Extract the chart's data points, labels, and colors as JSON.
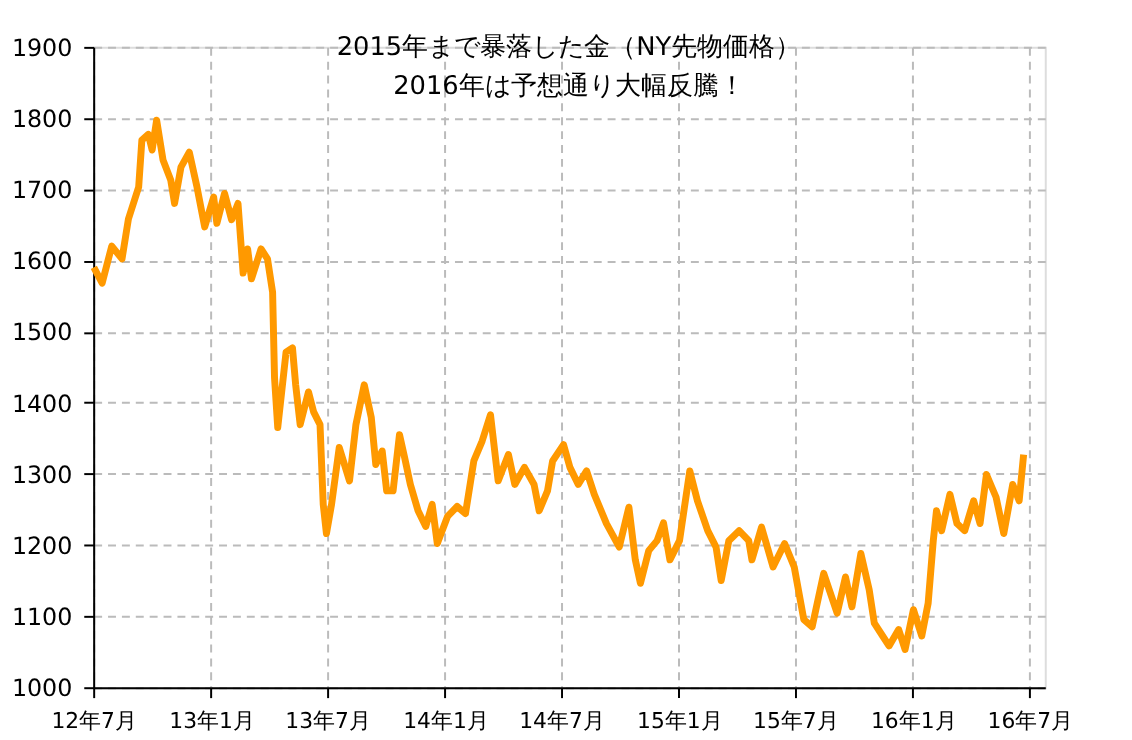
{
  "chart_data": {
    "type": "line",
    "title": "2015年まで暴落した金（NY先物価格）\n2016年は予想通り大幅反騰！",
    "x": [
      "2012-07-02",
      "2012-07-15",
      "2012-07-30",
      "2012-08-15",
      "2012-08-25",
      "2012-09-10",
      "2012-09-15",
      "2012-09-25",
      "2012-10-01",
      "2012-10-08",
      "2012-10-18",
      "2012-10-30",
      "2012-11-05",
      "2012-11-15",
      "2012-11-28",
      "2012-12-10",
      "2012-12-22",
      "2013-01-05",
      "2013-01-10",
      "2013-01-22",
      "2013-02-02",
      "2013-02-12",
      "2013-02-20",
      "2013-02-27",
      "2013-03-05",
      "2013-03-20",
      "2013-03-30",
      "2013-04-07",
      "2013-04-10",
      "2013-04-15",
      "2013-04-28",
      "2013-05-08",
      "2013-05-13",
      "2013-05-20",
      "2013-06-02",
      "2013-06-10",
      "2013-06-20",
      "2013-06-25",
      "2013-06-30",
      "2013-07-08",
      "2013-07-20",
      "2013-08-05",
      "2013-08-15",
      "2013-08-28",
      "2013-09-08",
      "2013-09-15",
      "2013-09-25",
      "2013-10-02",
      "2013-10-12",
      "2013-10-22",
      "2013-10-30",
      "2013-11-08",
      "2013-11-20",
      "2013-12-02",
      "2013-12-12",
      "2013-12-20",
      "2014-01-05",
      "2014-01-20",
      "2014-02-02",
      "2014-02-15",
      "2014-02-28",
      "2014-03-13",
      "2014-03-25",
      "2014-04-10",
      "2014-04-20",
      "2014-05-05",
      "2014-05-20",
      "2014-05-28",
      "2014-06-10",
      "2014-06-18",
      "2014-07-05",
      "2014-07-15",
      "2014-07-28",
      "2014-08-10",
      "2014-08-22",
      "2014-09-10",
      "2014-09-30",
      "2014-10-15",
      "2014-10-25",
      "2014-11-02",
      "2014-11-15",
      "2014-11-28",
      "2014-12-08",
      "2014-12-18",
      "2015-01-02",
      "2015-01-18",
      "2015-01-30",
      "2015-02-15",
      "2015-02-28",
      "2015-03-08",
      "2015-03-20",
      "2015-04-05",
      "2015-04-20",
      "2015-04-25",
      "2015-05-10",
      "2015-05-28",
      "2015-06-15",
      "2015-06-30",
      "2015-07-15",
      "2015-07-28",
      "2015-08-15",
      "2015-09-05",
      "2015-09-18",
      "2015-09-28",
      "2015-10-12",
      "2015-10-25",
      "2015-11-02",
      "2015-11-15",
      "2015-11-25",
      "2015-12-10",
      "2015-12-20",
      "2016-01-02",
      "2016-01-15",
      "2016-01-25",
      "2016-02-02",
      "2016-02-07",
      "2016-02-15",
      "2016-02-28",
      "2016-03-10",
      "2016-03-22",
      "2016-04-05",
      "2016-04-15",
      "2016-04-25",
      "2016-05-10",
      "2016-05-22",
      "2016-06-05",
      "2016-06-15",
      "2016-06-22"
    ],
    "series": [
      {
        "color": "#ff9900",
        "values": [
          1590,
          1568,
          1620,
          1602,
          1658,
          1703,
          1769,
          1777,
          1755,
          1797,
          1741,
          1713,
          1680,
          1731,
          1752,
          1703,
          1647,
          1689,
          1652,
          1694,
          1657,
          1680,
          1582,
          1616,
          1574,
          1616,
          1602,
          1555,
          1435,
          1365,
          1471,
          1477,
          1425,
          1369,
          1415,
          1387,
          1369,
          1257,
          1216,
          1257,
          1337,
          1290,
          1369,
          1425,
          1379,
          1313,
          1332,
          1276,
          1276,
          1355,
          1323,
          1285,
          1248,
          1226,
          1257,
          1202,
          1240,
          1254,
          1244,
          1318,
          1346,
          1383,
          1290,
          1327,
          1285,
          1309,
          1285,
          1248,
          1276,
          1318,
          1341,
          1309,
          1285,
          1304,
          1271,
          1230,
          1197,
          1253,
          1179,
          1146,
          1192,
          1206,
          1231,
          1179,
          1206,
          1304,
          1262,
          1220,
          1197,
          1150,
          1206,
          1220,
          1206,
          1179,
          1225,
          1169,
          1202,
          1169,
          1095,
          1085,
          1160,
          1104,
          1155,
          1113,
          1188,
          1137,
          1090,
          1072,
          1058,
          1081,
          1053,
          1109,
          1072,
          1118,
          1206,
          1248,
          1220,
          1271,
          1230,
          1220,
          1262,
          1230,
          1299,
          1267,
          1216,
          1285,
          1262,
          1327
        ]
      }
    ],
    "xlim": [
      "2012-07-01",
      "2016-07-25"
    ],
    "xticks": [
      {
        "value": "2012-07",
        "label": "12年7月"
      },
      {
        "value": "2013-01",
        "label": "13年1月"
      },
      {
        "value": "2013-07",
        "label": "13年7月"
      },
      {
        "value": "2014-01",
        "label": "14年1月"
      },
      {
        "value": "2014-07",
        "label": "14年7月"
      },
      {
        "value": "2015-01",
        "label": "15年1月"
      },
      {
        "value": "2015-07",
        "label": "15年7月"
      },
      {
        "value": "2016-01",
        "label": "16年1月"
      },
      {
        "value": "2016-07",
        "label": "16年7月"
      }
    ],
    "ylim": [
      1000,
      1900
    ],
    "yticks": [
      1000,
      1100,
      1200,
      1300,
      1400,
      1500,
      1600,
      1700,
      1800,
      1900
    ],
    "grid": true,
    "line_style": "solid",
    "marker": "none"
  }
}
